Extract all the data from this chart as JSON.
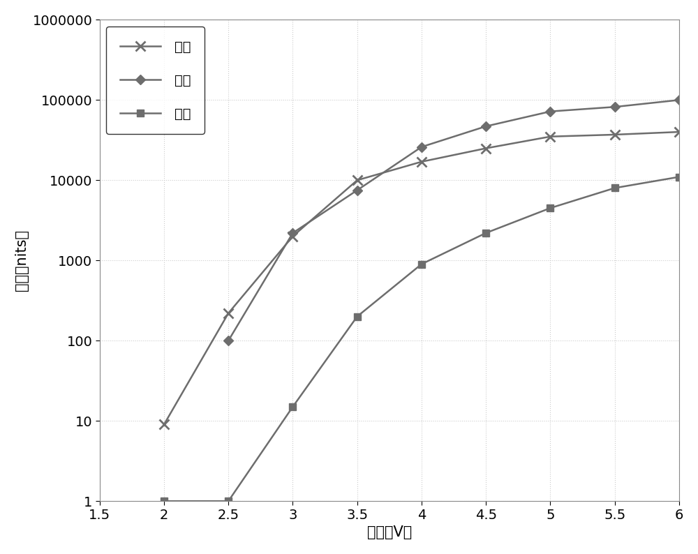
{
  "red_x": [
    2.0,
    2.5,
    3.0,
    3.5,
    4.0,
    4.5,
    5.0,
    5.5,
    6.0
  ],
  "red_y": [
    9,
    220,
    2000,
    10000,
    17000,
    25000,
    35000,
    37000,
    40000
  ],
  "green_x": [
    2.5,
    3.0,
    3.5,
    4.0,
    4.5,
    5.0,
    5.5,
    6.0
  ],
  "green_y": [
    100,
    2200,
    7500,
    26000,
    47000,
    72000,
    82000,
    100000
  ],
  "blue_x": [
    2.0,
    2.5,
    3.0,
    3.5,
    4.0,
    4.5,
    5.0,
    5.5,
    6.0
  ],
  "blue_y": [
    1,
    1,
    15,
    200,
    900,
    2200,
    4500,
    8000,
    11000
  ],
  "line_color": "#6d6d6d",
  "xlabel": "电压（V）",
  "ylabel": "亮度（nits）",
  "legend_red": "红色",
  "legend_green": "绿色",
  "legend_blue": "蓝色",
  "xlim": [
    1.5,
    6.0
  ],
  "ylim": [
    1,
    1000000
  ],
  "xticks": [
    1.5,
    2.0,
    2.5,
    3.0,
    3.5,
    4.0,
    4.5,
    5.0,
    5.5,
    6.0
  ],
  "xtick_labels": [
    "1.5",
    "2",
    "2.5",
    "3",
    "3.5",
    "4",
    "4.5",
    "5",
    "5.5",
    "6"
  ],
  "yticks": [
    1,
    10,
    100,
    1000,
    10000,
    100000,
    1000000
  ],
  "ytick_labels": [
    "1",
    "10",
    "100",
    "1000",
    "10000",
    "100000",
    "1000000"
  ],
  "background_color": "#ffffff",
  "plot_bg_color": "#ffffff",
  "font_size": 14,
  "linewidth": 1.8,
  "markersize": 7
}
